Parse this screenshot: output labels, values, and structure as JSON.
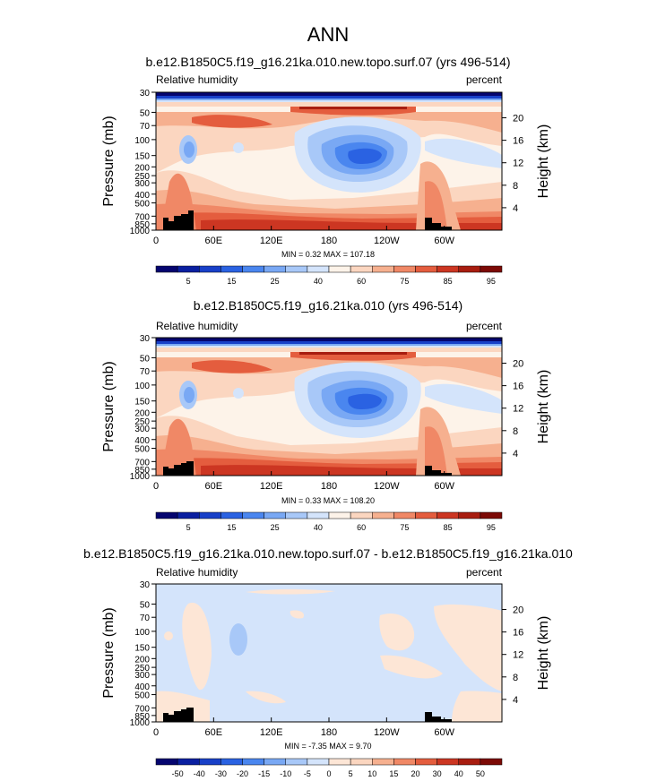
{
  "figure": {
    "title": "ANN"
  },
  "chart_data": [
    {
      "type": "heatmap",
      "title": "b.e12.B1850C5.f19_g16.21ka.010.new.topo.surf.07 (yrs 496-514)",
      "left_label": "Relative humidity",
      "right_label": "percent",
      "ylabel": "Pressure (mb)",
      "y2label": "Height (km)",
      "x_ticks": [
        "0",
        "60E",
        "120E",
        "180",
        "120W",
        "60W"
      ],
      "y_ticks": [
        "30",
        "50",
        "70",
        "100",
        "150",
        "200",
        "250",
        "300",
        "400",
        "500",
        "700",
        "850",
        "1000"
      ],
      "y2_ticks": [
        "20",
        "16",
        "12",
        "8",
        "4"
      ],
      "stats": "MIN =   0.32  MAX = 107.18",
      "colorbar_labels": [
        "5",
        "15",
        "25",
        "40",
        "60",
        "75",
        "85",
        "95"
      ],
      "colors": [
        "#05056f",
        "#0a1fa0",
        "#1840c8",
        "#2a62e2",
        "#4a86ef",
        "#79a8f4",
        "#a8c8f8",
        "#d4e4fb",
        "#fdf3e9",
        "#fbd6c0",
        "#f6b08f",
        "#f08866",
        "#e45d3e",
        "#cc3622",
        "#a81d10",
        "#7c0a06"
      ]
    },
    {
      "type": "heatmap",
      "title": "b.e12.B1850C5.f19_g16.21ka.010 (yrs 496-514)",
      "left_label": "Relative humidity",
      "right_label": "percent",
      "ylabel": "Pressure (mb)",
      "y2label": "Height (km)",
      "x_ticks": [
        "0",
        "60E",
        "120E",
        "180",
        "120W",
        "60W"
      ],
      "y_ticks": [
        "30",
        "50",
        "70",
        "100",
        "150",
        "200",
        "250",
        "300",
        "400",
        "500",
        "700",
        "850",
        "1000"
      ],
      "y2_ticks": [
        "20",
        "16",
        "12",
        "8",
        "4"
      ],
      "stats": "MIN =   0.33  MAX = 108.20",
      "colorbar_labels": [
        "5",
        "15",
        "25",
        "40",
        "60",
        "75",
        "85",
        "95"
      ],
      "colors": [
        "#05056f",
        "#0a1fa0",
        "#1840c8",
        "#2a62e2",
        "#4a86ef",
        "#79a8f4",
        "#a8c8f8",
        "#d4e4fb",
        "#fdf3e9",
        "#fbd6c0",
        "#f6b08f",
        "#f08866",
        "#e45d3e",
        "#cc3622",
        "#a81d10",
        "#7c0a06"
      ]
    },
    {
      "type": "heatmap",
      "title": "b.e12.B1850C5.f19_g16.21ka.010.new.topo.surf.07 - b.e12.B1850C5.f19_g16.21ka.010",
      "left_label": "Relative humidity",
      "right_label": "percent",
      "ylabel": "Pressure (mb)",
      "y2label": "Height (km)",
      "x_ticks": [
        "0",
        "60E",
        "120E",
        "180",
        "120W",
        "60W"
      ],
      "y_ticks": [
        "30",
        "50",
        "70",
        "100",
        "150",
        "200",
        "250",
        "300",
        "400",
        "500",
        "700",
        "850",
        "1000"
      ],
      "y2_ticks": [
        "20",
        "16",
        "12",
        "8",
        "4"
      ],
      "stats": "MIN =  -7.35  MAX =   9.70",
      "colorbar_labels": [
        "-50",
        "-40",
        "-30",
        "-20",
        "-15",
        "-10",
        "-5",
        "0",
        "5",
        "10",
        "15",
        "20",
        "30",
        "40",
        "50"
      ],
      "colors": [
        "#05056f",
        "#0a1fa0",
        "#1840c8",
        "#2a62e2",
        "#4a86ef",
        "#79a8f4",
        "#a8c8f8",
        "#d4e4fb",
        "#fde6d6",
        "#fbd6c0",
        "#f6b08f",
        "#f08866",
        "#e45d3e",
        "#cc3622",
        "#a81d10",
        "#7c0a06"
      ]
    }
  ]
}
